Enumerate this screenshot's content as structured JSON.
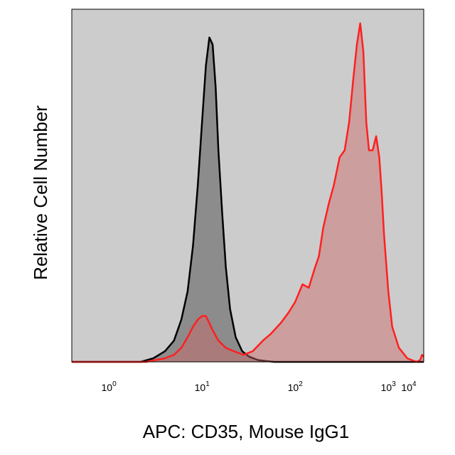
{
  "chart_data": {
    "type": "area",
    "title": "",
    "xlabel": "APC: CD35, Mouse IgG1",
    "ylabel": "Relative Cell Number",
    "x_scale": "log",
    "xlim": [
      0.4,
      2400
    ],
    "ylim": [
      0,
      1.0
    ],
    "x_ticks": [
      {
        "value": 1,
        "base": "10",
        "exp": "0"
      },
      {
        "value": 10,
        "base": "10",
        "exp": "1"
      },
      {
        "value": 100,
        "base": "10",
        "exp": "2"
      },
      {
        "value": 1000,
        "base": "10",
        "exp": "3"
      },
      {
        "value": 10000,
        "base": "10",
        "exp": "4"
      }
    ],
    "grid": false,
    "legend": "none",
    "background_color": "#cccccc",
    "series": [
      {
        "line_color": "#000000",
        "fill_color": "#808080",
        "fill_opacity": 0.85,
        "x": [
          0.4,
          2.2,
          3.0,
          4.0,
          5.0,
          6.0,
          7.0,
          8.0,
          9.0,
          10.0,
          11.0,
          12.0,
          13.0,
          14.0,
          15.0,
          16.5,
          18.0,
          20.0,
          23.0,
          27.0,
          32.0,
          40.0,
          50.0,
          60.0,
          100.0,
          2400.0
        ],
        "y": [
          0.0,
          0.0,
          0.01,
          0.03,
          0.06,
          0.12,
          0.2,
          0.33,
          0.5,
          0.68,
          0.84,
          0.92,
          0.9,
          0.78,
          0.6,
          0.42,
          0.27,
          0.15,
          0.07,
          0.03,
          0.015,
          0.005,
          0.002,
          0.0,
          0.0,
          0.0
        ]
      },
      {
        "line_color": "#ff2020",
        "fill_color": "#cc6666",
        "fill_opacity": 0.45,
        "x": [
          0.4,
          2.5,
          4.0,
          5.0,
          6.0,
          7.0,
          8.0,
          9.0,
          10.0,
          11.0,
          12.0,
          13.0,
          15.0,
          18.0,
          22.0,
          28.0,
          35.0,
          45.0,
          55.0,
          70.0,
          85.0,
          100.0,
          120.0,
          140.0,
          160.0,
          180.0,
          200.0,
          230.0,
          260.0,
          300.0,
          340.0,
          380.0,
          420.0,
          460.0,
          500.0,
          540.0,
          580.0,
          620.0,
          680.0,
          740.0,
          800.0,
          850.0,
          900.0,
          1000.0,
          1100.0,
          1300.0,
          1600.0,
          2000.0,
          2200.0,
          2300.0,
          2400.0
        ],
        "y": [
          0.0,
          0.0,
          0.01,
          0.02,
          0.04,
          0.07,
          0.1,
          0.12,
          0.13,
          0.13,
          0.11,
          0.09,
          0.06,
          0.04,
          0.03,
          0.02,
          0.03,
          0.06,
          0.08,
          0.11,
          0.14,
          0.17,
          0.22,
          0.21,
          0.26,
          0.3,
          0.38,
          0.45,
          0.5,
          0.58,
          0.6,
          0.68,
          0.8,
          0.9,
          0.96,
          0.88,
          0.68,
          0.6,
          0.6,
          0.64,
          0.58,
          0.48,
          0.36,
          0.2,
          0.1,
          0.04,
          0.01,
          0.0,
          0.005,
          0.02,
          0.015
        ]
      }
    ]
  }
}
